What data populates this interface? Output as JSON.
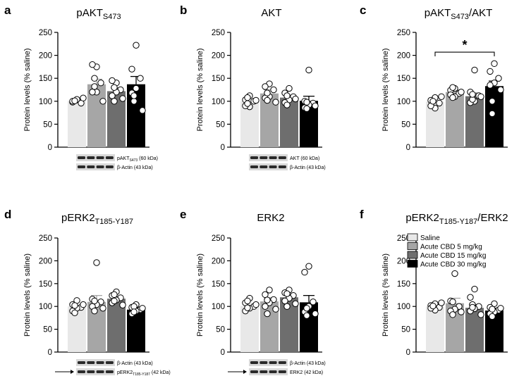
{
  "figure": {
    "y_axis_label": "Protein levels (% saline)",
    "y_ticks": [
      0,
      50,
      100,
      150,
      200,
      250
    ]
  },
  "legend": {
    "entries": [
      {
        "label": "Saline",
        "color": "#e8e8e8"
      },
      {
        "label": "Acute CBD 5 mg/kg",
        "color": "#a6a6a6"
      },
      {
        "label": "Acute CBD 15 mg/kg",
        "color": "#6e6e6e"
      },
      {
        "label": "Acute CBD 30 mg/kg",
        "color": "#000000"
      }
    ]
  },
  "chart_data": [
    {
      "type": "bar",
      "panel_letter": "a",
      "title": "pAKT",
      "title_sub": "S473",
      "title_suffix": "",
      "ylabel": "Protein levels (% saline)",
      "ylim": [
        0,
        250
      ],
      "categories": [
        "Saline",
        "Acute CBD 5 mg/kg",
        "Acute CBD 15 mg/kg",
        "Acute CBD 30 mg/kg"
      ],
      "values": [
        101,
        137,
        122,
        137
      ],
      "errors": [
        3,
        11,
        7,
        17
      ],
      "points": [
        [
          103,
          98,
          96,
          104,
          100,
          107,
          101
        ],
        [
          175,
          180,
          140,
          120,
          120,
          100,
          150,
          132
        ],
        [
          140,
          145,
          125,
          120,
          112,
          106,
          100,
          130
        ],
        [
          222,
          170,
          150,
          128,
          118,
          80,
          100,
          112
        ]
      ],
      "significance": null,
      "blots": [
        {
          "label": "pAKT",
          "label_sub": "S473",
          "label_suffix": " (60 kDa)",
          "arrow": false
        },
        {
          "label": "β-Actin (43 kDa)",
          "label_sub": "",
          "label_suffix": "",
          "arrow": false
        }
      ]
    },
    {
      "type": "bar",
      "panel_letter": "b",
      "title": "AKT",
      "title_sub": "",
      "title_suffix": "",
      "ylabel": "Protein levels (% saline)",
      "ylim": [
        0,
        250
      ],
      "categories": [
        "Saline",
        "Acute CBD 5 mg/kg",
        "Acute CBD 15 mg/kg",
        "Acute CBD 30 mg/kg"
      ],
      "values": [
        100,
        117,
        108,
        101
      ],
      "errors": [
        4,
        8,
        5,
        10
      ],
      "points": [
        [
          112,
          103,
          100,
          88,
          90,
          102,
          95,
          108
        ],
        [
          138,
          132,
          125,
          110,
          107,
          98,
          102,
          118
        ],
        [
          128,
          118,
          110,
          103,
          97,
          105,
          92,
          112
        ],
        [
          168,
          100,
          96,
          92,
          86,
          90,
          98,
          84
        ]
      ],
      "significance": null,
      "blots": [
        {
          "label": "AKT (60 kDa)",
          "label_sub": "",
          "label_suffix": "",
          "arrow": false
        },
        {
          "label": "β-Actin (43 kDa)",
          "label_sub": "",
          "label_suffix": "",
          "arrow": false
        }
      ]
    },
    {
      "type": "bar",
      "panel_letter": "c",
      "title": "pAKT",
      "title_sub": "S473",
      "title_suffix": "/AKT",
      "ylabel": "Protein levels (% saline)",
      "ylim": [
        0,
        250
      ],
      "categories": [
        "Saline",
        "Acute CBD 5 mg/kg",
        "Acute CBD 15 mg/kg",
        "Acute CBD 30 mg/kg"
      ],
      "values": [
        99,
        120,
        111,
        133
      ],
      "errors": [
        4,
        5,
        7,
        11
      ],
      "points": [
        [
          108,
          102,
          96,
          85,
          90,
          110,
          100
        ],
        [
          128,
          124,
          117,
          110,
          114,
          120,
          108,
          130
        ],
        [
          168,
          120,
          112,
          100,
          97,
          110,
          104,
          115
        ],
        [
          182,
          165,
          150,
          140,
          135,
          125,
          100,
          73
        ]
      ],
      "significance": {
        "label": "*",
        "from": 0,
        "to": 3,
        "y": 207
      },
      "blots": []
    },
    {
      "type": "bar",
      "panel_letter": "d",
      "title": "pERK2",
      "title_sub": "T185-Y187",
      "title_suffix": "",
      "ylabel": "Protein levels (% saline)",
      "ylim": [
        0,
        250
      ],
      "categories": [
        "Saline",
        "Acute CBD 5 mg/kg",
        "Acute CBD 15 mg/kg",
        "Acute CBD 30 mg/kg"
      ],
      "values": [
        100,
        110,
        117,
        93
      ],
      "errors": [
        4,
        14,
        5,
        4
      ],
      "points": [
        [
          113,
          104,
          98,
          96,
          90,
          104,
          102,
          86
        ],
        [
          196,
          116,
          110,
          104,
          100,
          96,
          112,
          90
        ],
        [
          132,
          124,
          119,
          114,
          108,
          103,
          126,
          112
        ],
        [
          104,
          98,
          93,
          90,
          84,
          96,
          100,
          88
        ]
      ],
      "significance": null,
      "blots": [
        {
          "label": "β-Actin (43 kDa)",
          "label_sub": "",
          "label_suffix": "",
          "arrow": false
        },
        {
          "label": "pERK2",
          "label_sub": "T185-Y187",
          "label_suffix": " (42 kDa)",
          "arrow": true
        }
      ]
    },
    {
      "type": "bar",
      "panel_letter": "e",
      "title": "ERK2",
      "title_sub": "",
      "title_suffix": "",
      "ylabel": "Protein levels (% saline)",
      "ylim": [
        0,
        250
      ],
      "categories": [
        "Saline",
        "Acute CBD 5 mg/kg",
        "Acute CBD 15 mg/kg",
        "Acute CBD 30 mg/kg"
      ],
      "values": [
        101,
        111,
        120,
        109
      ],
      "errors": [
        5,
        8,
        5,
        15
      ],
      "points": [
        [
          118,
          108,
          100,
          96,
          90,
          104,
          112,
          97
        ],
        [
          136,
          126,
          115,
          108,
          100,
          94,
          84,
          114
        ],
        [
          136,
          130,
          124,
          118,
          112,
          106,
          100,
          128
        ],
        [
          188,
          175,
          110,
          100,
          88,
          84,
          96,
          80
        ]
      ],
      "significance": null,
      "blots": [
        {
          "label": "β-Actin (43 kDa)",
          "label_sub": "",
          "label_suffix": "",
          "arrow": false
        },
        {
          "label": "ERK2 (42 kDa)",
          "label_sub": "",
          "label_suffix": "",
          "arrow": true
        }
      ]
    },
    {
      "type": "bar",
      "panel_letter": "f",
      "title": "pERK2",
      "title_sub": "T185-Y187",
      "title_suffix": "/ERK2",
      "ylabel": "Protein levels (% saline)",
      "ylim": [
        0,
        250
      ],
      "categories": [
        "Saline",
        "Acute CBD 5 mg/kg",
        "Acute CBD 15 mg/kg",
        "Acute CBD 30 mg/kg"
      ],
      "values": [
        100,
        107,
        97,
        91
      ],
      "errors": [
        3,
        11,
        7,
        5
      ],
      "points": [
        [
          106,
          102,
          98,
          92,
          96,
          108,
          101
        ],
        [
          172,
          112,
          100,
          94,
          90,
          88,
          110,
          82
        ],
        [
          138,
          120,
          100,
          95,
          90,
          82,
          104,
          98
        ],
        [
          106,
          98,
          92,
          88,
          84,
          96,
          78,
          94
        ]
      ],
      "significance": null,
      "blots": []
    }
  ]
}
